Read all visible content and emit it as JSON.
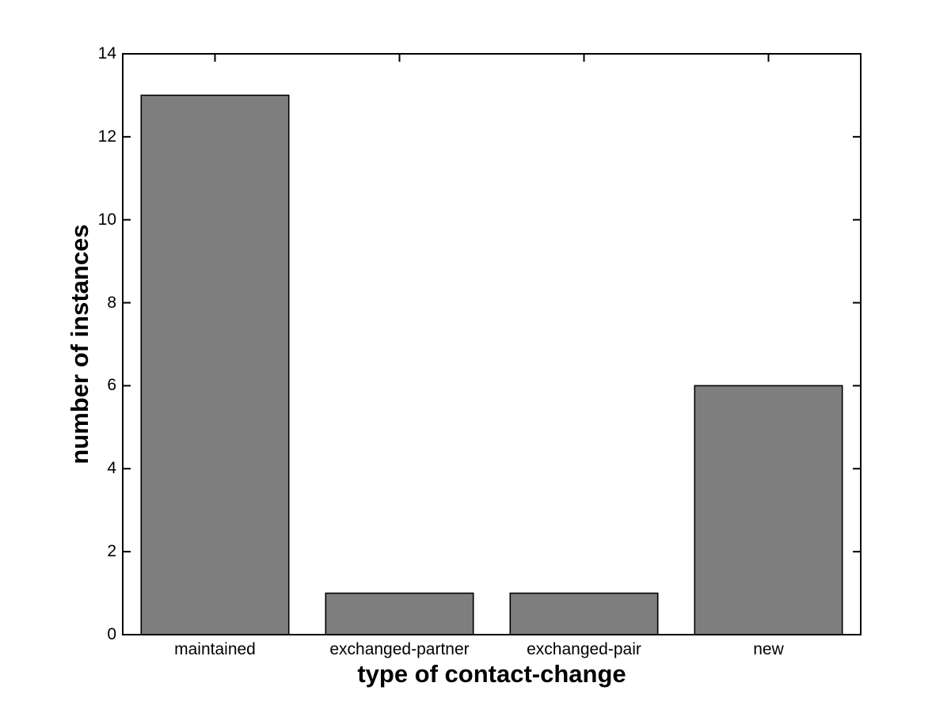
{
  "chart_data": {
    "type": "bar",
    "title": "",
    "xlabel": "type of contact-change",
    "ylabel": "number of instances",
    "categories": [
      "maintained",
      "exchanged-partner",
      "exchanged-pair",
      "new"
    ],
    "values": [
      13,
      1,
      1,
      6
    ],
    "ylim": [
      0,
      14
    ],
    "yticks": [
      0,
      2,
      4,
      6,
      8,
      10,
      12,
      14
    ],
    "bar_width_fraction": 0.8,
    "grid": false,
    "legend": null,
    "colors": {
      "bar_fill": "#7e7e7e",
      "bar_edge": "#000000",
      "axis": "#000000",
      "text": "#000000",
      "background": "#ffffff"
    }
  }
}
